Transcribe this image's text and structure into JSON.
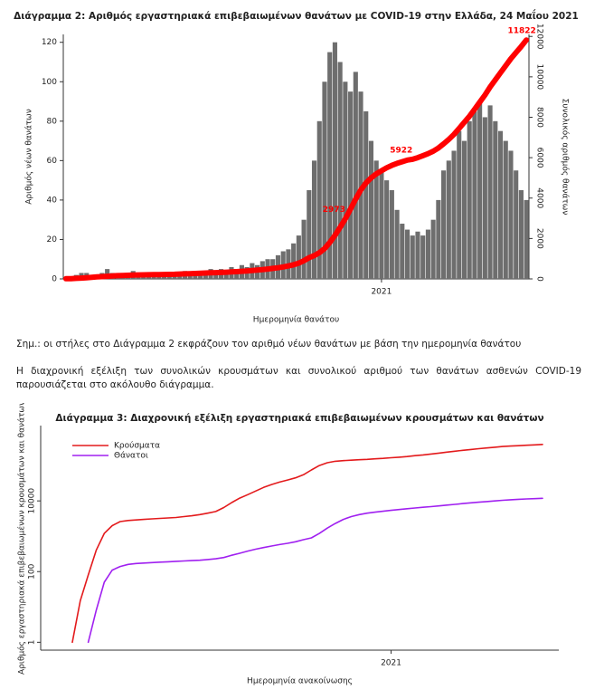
{
  "chart_data": [
    {
      "type": "bar",
      "title": "Διάγραμμα 2: Αριθμός εργαστηριακά επιβεβαιωμένων θανάτων με COVID-19 στην Ελλάδα, 24 Μαΐου 2021",
      "x_label": "Ημερομηνία θανάτου",
      "y_label": "Αριθμός νέων θανάτων",
      "y2_label": "Συνολικός αριθμός θανάτων",
      "categories": [
        null,
        null,
        null,
        null,
        null,
        null,
        null,
        null,
        null,
        null,
        null,
        null,
        null,
        null,
        null,
        null,
        null,
        null,
        null,
        null,
        null,
        null,
        null,
        null,
        null,
        null,
        null,
        null,
        null,
        null,
        null,
        null,
        null,
        null,
        null,
        null,
        null,
        null,
        null,
        null,
        null,
        null,
        null,
        null,
        null,
        null,
        null,
        null,
        null,
        null,
        null,
        null,
        null,
        null,
        null,
        null,
        null,
        null,
        null,
        null,
        null,
        "2021",
        null,
        null,
        null,
        null,
        null,
        null,
        null,
        null,
        null,
        null,
        null,
        null,
        null,
        null,
        null,
        null,
        null,
        null,
        null,
        null,
        null,
        null,
        null,
        null,
        null,
        null,
        null,
        null
      ],
      "series": [
        {
          "color": "#6e6e6e",
          "values": [
            0,
            1,
            2,
            3,
            3,
            2,
            2,
            3,
            5,
            3,
            2,
            3,
            2,
            4,
            3,
            2,
            2,
            3,
            2,
            3,
            2,
            3,
            3,
            4,
            3,
            3,
            4,
            4,
            5,
            4,
            5,
            4,
            6,
            5,
            7,
            6,
            8,
            7,
            9,
            10,
            10,
            12,
            14,
            15,
            18,
            22,
            30,
            45,
            60,
            80,
            100,
            115,
            120,
            110,
            100,
            95,
            105,
            95,
            85,
            70,
            60,
            55,
            50,
            45,
            35,
            28,
            25,
            22,
            24,
            22,
            25,
            30,
            40,
            55,
            60,
            65,
            75,
            70,
            80,
            85,
            90,
            82,
            88,
            80,
            75,
            70,
            65,
            55,
            45,
            40
          ]
        },
        {
          "type": "line",
          "axis": "y2",
          "color": "#ff0000",
          "values": [
            10,
            15,
            25,
            40,
            60,
            80,
            100,
            110,
            130,
            150,
            160,
            170,
            180,
            190,
            195,
            200,
            205,
            210,
            215,
            220,
            225,
            230,
            240,
            250,
            260,
            270,
            280,
            290,
            300,
            310,
            320,
            330,
            345,
            360,
            375,
            395,
            415,
            440,
            460,
            490,
            520,
            550,
            590,
            640,
            700,
            780,
            900,
            1050,
            1150,
            1300,
            1500,
            1800,
            2150,
            2550,
            2973,
            3450,
            3950,
            4400,
            4750,
            5000,
            5200,
            5350,
            5500,
            5620,
            5720,
            5800,
            5880,
            5922,
            6000,
            6100,
            6200,
            6320,
            6480,
            6680,
            6900,
            7150,
            7450,
            7750,
            8050,
            8400,
            8750,
            9100,
            9500,
            9850,
            10200,
            10550,
            10900,
            11200,
            11500,
            11822
          ],
          "value_labels": [
            null,
            null,
            null,
            null,
            null,
            null,
            null,
            null,
            null,
            null,
            null,
            null,
            null,
            null,
            null,
            null,
            null,
            null,
            null,
            null,
            null,
            null,
            null,
            null,
            null,
            null,
            null,
            null,
            null,
            null,
            null,
            null,
            null,
            null,
            null,
            null,
            null,
            null,
            null,
            null,
            null,
            null,
            null,
            null,
            null,
            null,
            null,
            null,
            null,
            null,
            null,
            null,
            null,
            null,
            "2973",
            null,
            null,
            null,
            null,
            null,
            null,
            null,
            null,
            null,
            null,
            null,
            null,
            "5922",
            null,
            null,
            null,
            null,
            null,
            null,
            null,
            null,
            null,
            null,
            null,
            null,
            null,
            null,
            null,
            null,
            null,
            null,
            null,
            null,
            null,
            "11822"
          ]
        }
      ],
      "ylim": [
        0,
        124
      ],
      "yticks": [
        0,
        20,
        40,
        60,
        80,
        100,
        120
      ],
      "y2lim": [
        0,
        12100
      ],
      "y2ticks": [
        0,
        2000,
        4000,
        6000,
        8000,
        10000,
        12000
      ]
    },
    {
      "type": "line",
      "title": "Διάγραμμα 3: Διαχρονική εξέλιξη εργαστηριακά επιβεβαιωμένων κρουσμάτων και θανάτων",
      "x_label": "Ημερομηνία ανακοίνωσης",
      "y_label": "Αριθμός εργαστηριακά επιβεβαιωμένων κρουσμάτων και θανάτων",
      "log_y": true,
      "legend": "top-left",
      "categories": [
        null,
        null,
        null,
        null,
        null,
        null,
        null,
        null,
        null,
        null,
        null,
        null,
        null,
        null,
        null,
        null,
        null,
        null,
        null,
        null,
        null,
        null,
        null,
        null,
        null,
        null,
        null,
        null,
        null,
        null,
        null,
        null,
        null,
        null,
        null,
        null,
        null,
        null,
        null,
        null,
        "2021",
        null,
        null,
        null,
        null,
        null,
        null,
        null,
        null,
        null,
        null,
        null,
        null,
        null,
        null,
        null,
        null,
        null,
        null,
        null
      ],
      "series": [
        {
          "name": "Κρούσματα",
          "color": "#e31a1c",
          "values": [
            1,
            15,
            80,
            400,
            1200,
            2000,
            2600,
            2800,
            2900,
            3000,
            3100,
            3200,
            3300,
            3400,
            3600,
            3800,
            4100,
            4500,
            5000,
            6500,
            9000,
            12000,
            15000,
            19000,
            24000,
            29000,
            34000,
            39000,
            45000,
            55000,
            75000,
            100000,
            120000,
            132000,
            138000,
            142000,
            146000,
            150000,
            155000,
            160000,
            166000,
            172000,
            180000,
            190000,
            200000,
            212000,
            225000,
            240000,
            255000,
            270000,
            285000,
            300000,
            315000,
            330000,
            345000,
            355000,
            365000,
            375000,
            385000,
            395000
          ]
        },
        {
          "name": "Θάνατοι",
          "color": "#a020f0",
          "values": [
            null,
            null,
            1,
            8,
            50,
            110,
            140,
            160,
            170,
            175,
            180,
            185,
            190,
            195,
            200,
            205,
            210,
            220,
            230,
            250,
            290,
            330,
            380,
            430,
            480,
            530,
            580,
            630,
            700,
            800,
            900,
            1200,
            1700,
            2300,
            3000,
            3600,
            4100,
            4500,
            4800,
            5100,
            5400,
            5700,
            6000,
            6300,
            6600,
            6900,
            7200,
            7600,
            8000,
            8400,
            8800,
            9200,
            9600,
            10000,
            10400,
            10800,
            11100,
            11400,
            11600,
            11822
          ]
        }
      ],
      "ylim": [
        0.6,
        1350000
      ],
      "yticks": [
        1,
        100,
        10000
      ]
    }
  ],
  "note": "Σημ.: οι στήλες στο Διάγραμμα 2 εκφράζουν τον αριθμό νέων θανάτων με βάση την ημερομηνία θανάτου",
  "paragraph": "Η διαχρονική εξέλιξη των συνολικών κρουσμάτων και συνολικού αριθμού των θανάτων ασθενών COVID-19 παρουσιάζεται στο ακόλουθο διάγραμμα."
}
